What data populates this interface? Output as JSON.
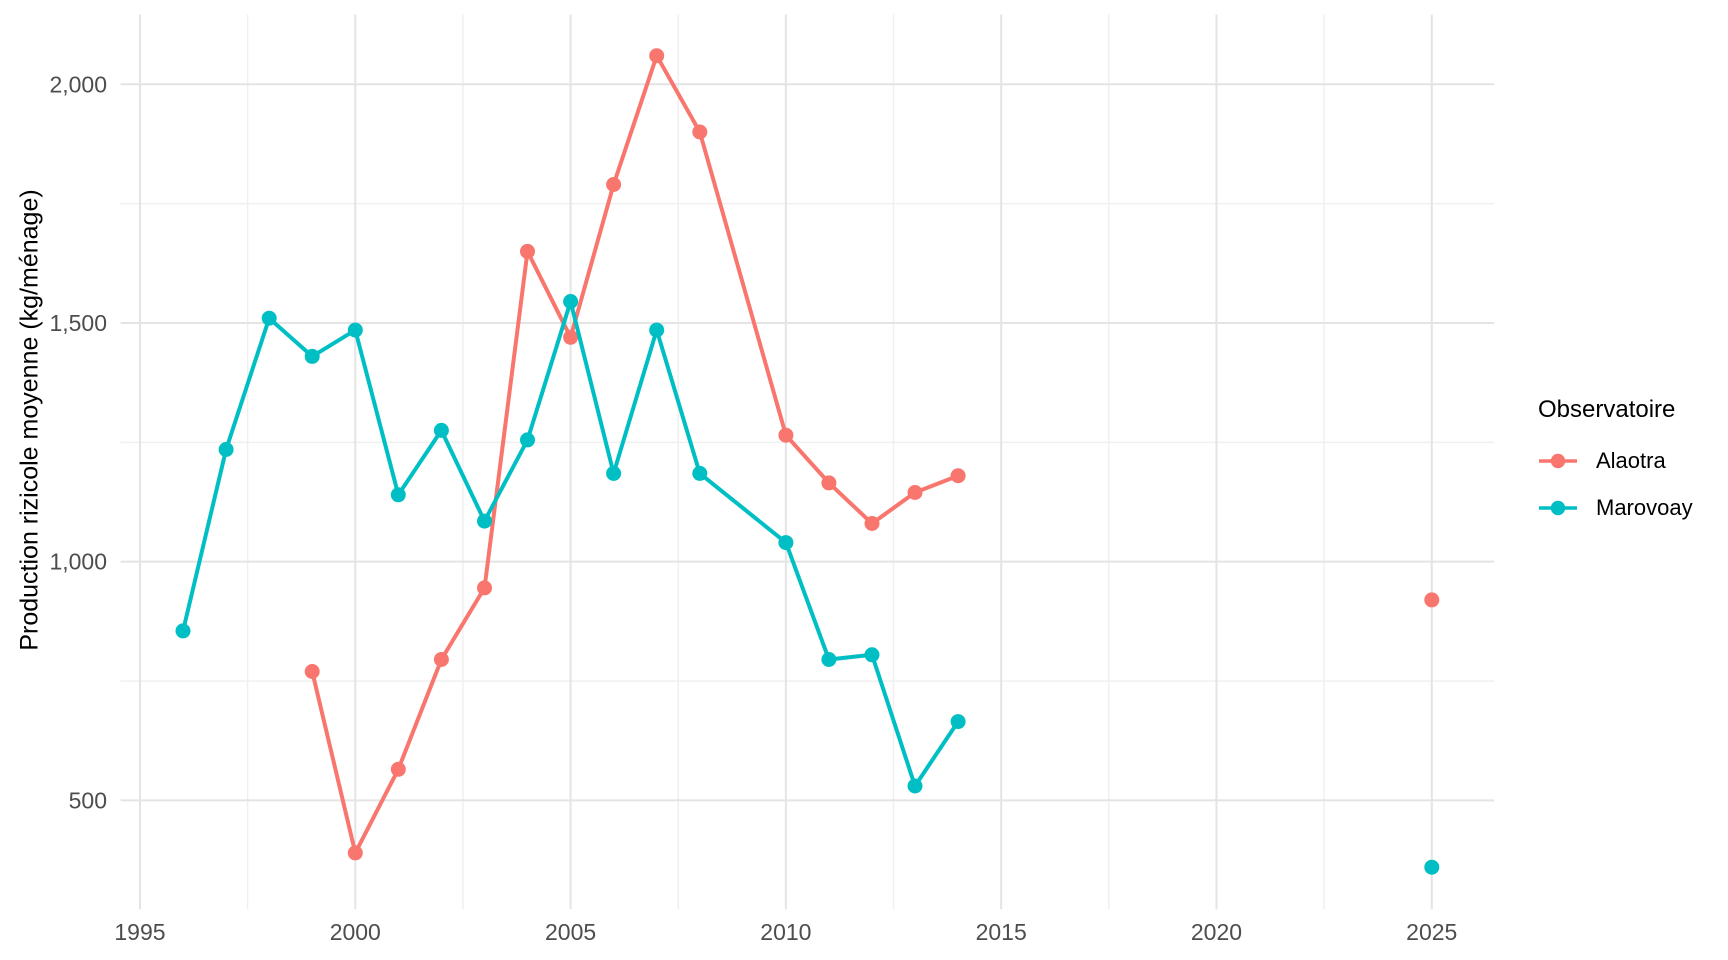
{
  "chart_data": {
    "type": "line",
    "title": "",
    "xlabel": "",
    "ylabel": "Production rizicole moyenne (kg/ménage)",
    "xlim": [
      1994.55,
      2026.45
    ],
    "ylim": [
      271.8,
      2146.2
    ],
    "grid": true,
    "legend": {
      "title": "Observatoire",
      "position": "right"
    },
    "colors": {
      "background": "#FFFFFF",
      "grid_major": "#E4E4E4",
      "grid_minor": "#EFEFEF",
      "axis_text": "#4D4D4D",
      "text": "#000000"
    },
    "x_major_ticks": [
      {
        "value": 1995,
        "label": "1995"
      },
      {
        "value": 2000,
        "label": "2000"
      },
      {
        "value": 2005,
        "label": "2005"
      },
      {
        "value": 2010,
        "label": "2010"
      },
      {
        "value": 2015,
        "label": "2015"
      },
      {
        "value": 2020,
        "label": "2020"
      },
      {
        "value": 2025,
        "label": "2025"
      }
    ],
    "x_minor_ticks": [
      1997.5,
      2002.5,
      2007.5,
      2012.5,
      2017.5,
      2022.5
    ],
    "y_major_ticks": [
      {
        "value": 500,
        "label": "500"
      },
      {
        "value": 1000,
        "label": "1,000"
      },
      {
        "value": 1500,
        "label": "1,500"
      },
      {
        "value": 2000,
        "label": "2,000"
      }
    ],
    "y_minor_ticks": [
      750,
      1250,
      1750
    ],
    "series": [
      {
        "name": "Alaotra",
        "color": "#F8766D",
        "line": [
          [
            1999,
            770
          ],
          [
            2000,
            390
          ],
          [
            2001,
            565
          ],
          [
            2002,
            795
          ],
          [
            2003,
            945
          ],
          [
            2004,
            1650
          ],
          [
            2005,
            1470
          ],
          [
            2006,
            1790
          ],
          [
            2007,
            2060
          ],
          [
            2008,
            1900
          ],
          [
            2010,
            1265
          ],
          [
            2011,
            1165
          ],
          [
            2012,
            1080
          ],
          [
            2013,
            1145
          ],
          [
            2014,
            1180
          ]
        ],
        "isolated": [
          [
            2025,
            920
          ]
        ]
      },
      {
        "name": "Marovoay",
        "color": "#00BFC4",
        "line": [
          [
            1996,
            855
          ],
          [
            1997,
            1235
          ],
          [
            1998,
            1510
          ],
          [
            1999,
            1430
          ],
          [
            2000,
            1485
          ],
          [
            2001,
            1140
          ],
          [
            2002,
            1275
          ],
          [
            2003,
            1085
          ],
          [
            2004,
            1255
          ],
          [
            2005,
            1545
          ],
          [
            2006,
            1185
          ],
          [
            2007,
            1485
          ],
          [
            2008,
            1185
          ],
          [
            2010,
            1040
          ],
          [
            2011,
            795
          ],
          [
            2012,
            805
          ],
          [
            2013,
            530
          ],
          [
            2014,
            665
          ]
        ],
        "isolated": [
          [
            2025,
            360
          ]
        ]
      }
    ]
  }
}
